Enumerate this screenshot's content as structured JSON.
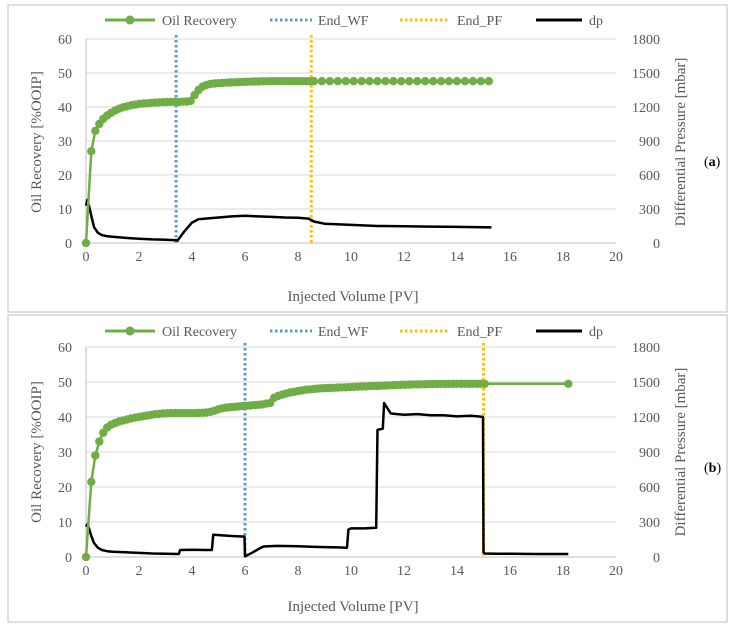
{
  "colors": {
    "oil": "#70ad47",
    "end_wf": "#5b9bd5",
    "end_pf": "#ffc000",
    "dp": "#000000",
    "grid": "#d9d9d9",
    "axis_text": "#595959",
    "frame": "#bfbfbf"
  },
  "legend": {
    "oil": "Oil Recovery",
    "end_wf": "End_WF",
    "end_pf": "End_PF",
    "dp": "dp"
  },
  "chart_data": [
    {
      "id": "a",
      "panel_label_prefix": "(",
      "panel_label": "a",
      "panel_label_suffix": ")",
      "type": "line",
      "xlabel": "Injected Volume [PV]",
      "ylabel": "Oil Recovery [%OOIP]",
      "y2label": "Differential Pressure [mbar]",
      "xlim": [
        0,
        20
      ],
      "ylim": [
        0,
        60
      ],
      "y2lim": [
        0,
        1800
      ],
      "x_ticks": [
        0,
        2,
        4,
        6,
        8,
        10,
        12,
        14,
        16,
        18,
        20
      ],
      "y_ticks": [
        0,
        10,
        20,
        30,
        40,
        50,
        60
      ],
      "y2_ticks": [
        0,
        300,
        600,
        900,
        1200,
        1500,
        1800
      ],
      "end_wf_x": 3.4,
      "end_pf_x": 8.5,
      "oil_recovery": {
        "x": [
          0.0,
          0.2,
          0.35,
          0.5,
          0.65,
          0.8,
          0.95,
          1.1,
          1.25,
          1.4,
          1.55,
          1.7,
          1.85,
          2.0,
          2.15,
          2.3,
          2.45,
          2.6,
          2.75,
          2.9,
          3.05,
          3.2,
          3.35,
          3.5,
          3.65,
          3.8,
          3.95,
          4.1,
          4.25,
          4.4,
          4.55,
          4.7,
          4.85,
          5.0,
          5.15,
          5.3,
          5.45,
          5.6,
          5.75,
          5.9,
          6.05,
          6.2,
          6.35,
          6.5,
          6.65,
          6.8,
          6.95,
          7.1,
          7.25,
          7.4,
          7.55,
          7.7,
          7.85,
          8.0,
          8.15,
          8.3,
          8.45,
          8.6,
          8.9,
          9.2,
          9.5,
          9.8,
          10.1,
          10.4,
          10.7,
          11.0,
          11.3,
          11.6,
          11.9,
          12.2,
          12.5,
          12.8,
          13.1,
          13.4,
          13.7,
          14.0,
          14.3,
          14.6,
          14.9,
          15.2
        ],
        "y": [
          0.0,
          27.0,
          33.0,
          35.0,
          36.5,
          37.5,
          38.3,
          39.0,
          39.5,
          39.9,
          40.2,
          40.5,
          40.7,
          40.9,
          41.0,
          41.1,
          41.2,
          41.3,
          41.35,
          41.4,
          41.45,
          41.5,
          41.5,
          41.5,
          41.55,
          41.6,
          41.8,
          43.5,
          45.0,
          46.0,
          46.5,
          46.8,
          46.9,
          47.0,
          47.1,
          47.15,
          47.2,
          47.25,
          47.3,
          47.35,
          47.4,
          47.45,
          47.5,
          47.5,
          47.55,
          47.55,
          47.6,
          47.6,
          47.6,
          47.6,
          47.6,
          47.6,
          47.6,
          47.6,
          47.6,
          47.6,
          47.6,
          47.6,
          47.6,
          47.6,
          47.6,
          47.6,
          47.6,
          47.6,
          47.6,
          47.6,
          47.6,
          47.6,
          47.6,
          47.6,
          47.6,
          47.6,
          47.6,
          47.6,
          47.6,
          47.6,
          47.6,
          47.6,
          47.6,
          47.6
        ]
      },
      "dp": {
        "x": [
          0.0,
          0.05,
          0.12,
          0.2,
          0.3,
          0.45,
          0.6,
          0.8,
          1.0,
          1.5,
          2.0,
          2.5,
          3.0,
          3.4,
          3.45,
          3.7,
          4.0,
          4.25,
          4.5,
          5.0,
          5.5,
          6.0,
          6.5,
          7.0,
          7.5,
          8.0,
          8.4,
          8.6,
          9.0,
          10.0,
          11.0,
          12.0,
          13.0,
          14.0,
          15.3
        ],
        "y": [
          330,
          380,
          320,
          240,
          140,
          90,
          70,
          60,
          55,
          45,
          38,
          32,
          28,
          25,
          20,
          100,
          180,
          210,
          215,
          225,
          235,
          240,
          235,
          230,
          225,
          222,
          215,
          190,
          170,
          160,
          150,
          148,
          145,
          142,
          138
        ]
      }
    },
    {
      "id": "b",
      "panel_label_prefix": "(",
      "panel_label": "b",
      "panel_label_suffix": ")",
      "type": "line",
      "xlabel": "Injected Volume [PV]",
      "ylabel": "Oil Recovery [%OOIP]",
      "y2label": "Differential Pressure [mbar]",
      "xlim": [
        0,
        20
      ],
      "ylim": [
        0,
        60
      ],
      "y2lim": [
        0,
        1800
      ],
      "x_ticks": [
        0,
        2,
        4,
        6,
        8,
        10,
        12,
        14,
        16,
        18,
        20
      ],
      "y_ticks": [
        0,
        10,
        20,
        30,
        40,
        50,
        60
      ],
      "y2_ticks": [
        0,
        300,
        600,
        900,
        1200,
        1500,
        1800
      ],
      "end_wf_x": 6.0,
      "end_pf_x": 15.0,
      "oil_recovery": {
        "x": [
          0.0,
          0.2,
          0.35,
          0.5,
          0.65,
          0.8,
          0.95,
          1.1,
          1.25,
          1.4,
          1.55,
          1.7,
          1.85,
          2.0,
          2.15,
          2.3,
          2.45,
          2.6,
          2.75,
          2.9,
          3.05,
          3.2,
          3.35,
          3.5,
          3.65,
          3.8,
          3.95,
          4.1,
          4.25,
          4.4,
          4.55,
          4.7,
          4.85,
          5.0,
          5.15,
          5.3,
          5.45,
          5.6,
          5.75,
          5.9,
          6.05,
          6.2,
          6.35,
          6.5,
          6.65,
          6.8,
          6.95,
          7.1,
          7.25,
          7.4,
          7.55,
          7.7,
          7.85,
          8.0,
          8.15,
          8.3,
          8.45,
          8.6,
          8.75,
          8.9,
          9.05,
          9.2,
          9.35,
          9.5,
          9.65,
          9.8,
          9.95,
          10.1,
          10.25,
          10.4,
          10.55,
          10.7,
          10.85,
          11.0,
          11.15,
          11.3,
          11.45,
          11.6,
          11.75,
          11.9,
          12.05,
          12.2,
          12.35,
          12.5,
          12.65,
          12.8,
          12.95,
          13.1,
          13.25,
          13.4,
          13.55,
          13.7,
          13.85,
          14.0,
          14.15,
          14.3,
          14.45,
          14.6,
          14.75,
          14.9,
          15.05,
          18.2
        ],
        "y": [
          0.0,
          21.5,
          29.0,
          33.0,
          35.5,
          37.0,
          37.8,
          38.3,
          38.7,
          39.0,
          39.3,
          39.6,
          39.8,
          40.0,
          40.2,
          40.4,
          40.6,
          40.8,
          40.9,
          41.0,
          41.05,
          41.1,
          41.1,
          41.1,
          41.1,
          41.1,
          41.1,
          41.1,
          41.15,
          41.2,
          41.3,
          41.5,
          41.8,
          42.2,
          42.5,
          42.7,
          42.8,
          42.9,
          43.0,
          43.1,
          43.2,
          43.3,
          43.4,
          43.5,
          43.6,
          43.8,
          44.0,
          45.5,
          46.0,
          46.4,
          46.7,
          47.0,
          47.2,
          47.4,
          47.6,
          47.8,
          47.9,
          48.0,
          48.1,
          48.2,
          48.25,
          48.3,
          48.35,
          48.4,
          48.45,
          48.5,
          48.55,
          48.6,
          48.65,
          48.7,
          48.75,
          48.8,
          48.85,
          48.9,
          48.95,
          49.0,
          49.05,
          49.1,
          49.15,
          49.2,
          49.2,
          49.25,
          49.3,
          49.3,
          49.35,
          49.35,
          49.4,
          49.4,
          49.4,
          49.45,
          49.45,
          49.45,
          49.5,
          49.5,
          49.5,
          49.5,
          49.5,
          49.5,
          49.5,
          49.5,
          49.5,
          49.5
        ]
      },
      "dp": {
        "x": [
          0.0,
          0.05,
          0.12,
          0.2,
          0.3,
          0.45,
          0.6,
          0.8,
          1.0,
          1.5,
          2.0,
          2.5,
          3.0,
          3.5,
          3.55,
          4.0,
          4.5,
          4.75,
          4.8,
          5.5,
          5.98,
          6.0,
          6.3,
          6.6,
          6.7,
          7.2,
          8.0,
          8.5,
          9.0,
          9.5,
          9.85,
          9.9,
          10.0,
          10.5,
          10.95,
          11.0,
          11.2,
          11.25,
          11.5,
          12.0,
          12.5,
          13.0,
          13.5,
          14.0,
          14.5,
          14.8,
          14.98,
          15.0,
          15.05,
          15.5,
          16.0,
          17.0,
          18.2
        ],
        "y": [
          260,
          280,
          240,
          180,
          120,
          80,
          60,
          50,
          45,
          40,
          35,
          30,
          28,
          26,
          60,
          62,
          60,
          60,
          190,
          180,
          175,
          5,
          40,
          80,
          90,
          95,
          92,
          88,
          85,
          82,
          80,
          235,
          245,
          245,
          250,
          1090,
          1100,
          1320,
          1230,
          1220,
          1225,
          1215,
          1215,
          1205,
          1210,
          1205,
          1200,
          40,
          30,
          28,
          28,
          26,
          26
        ]
      }
    }
  ]
}
